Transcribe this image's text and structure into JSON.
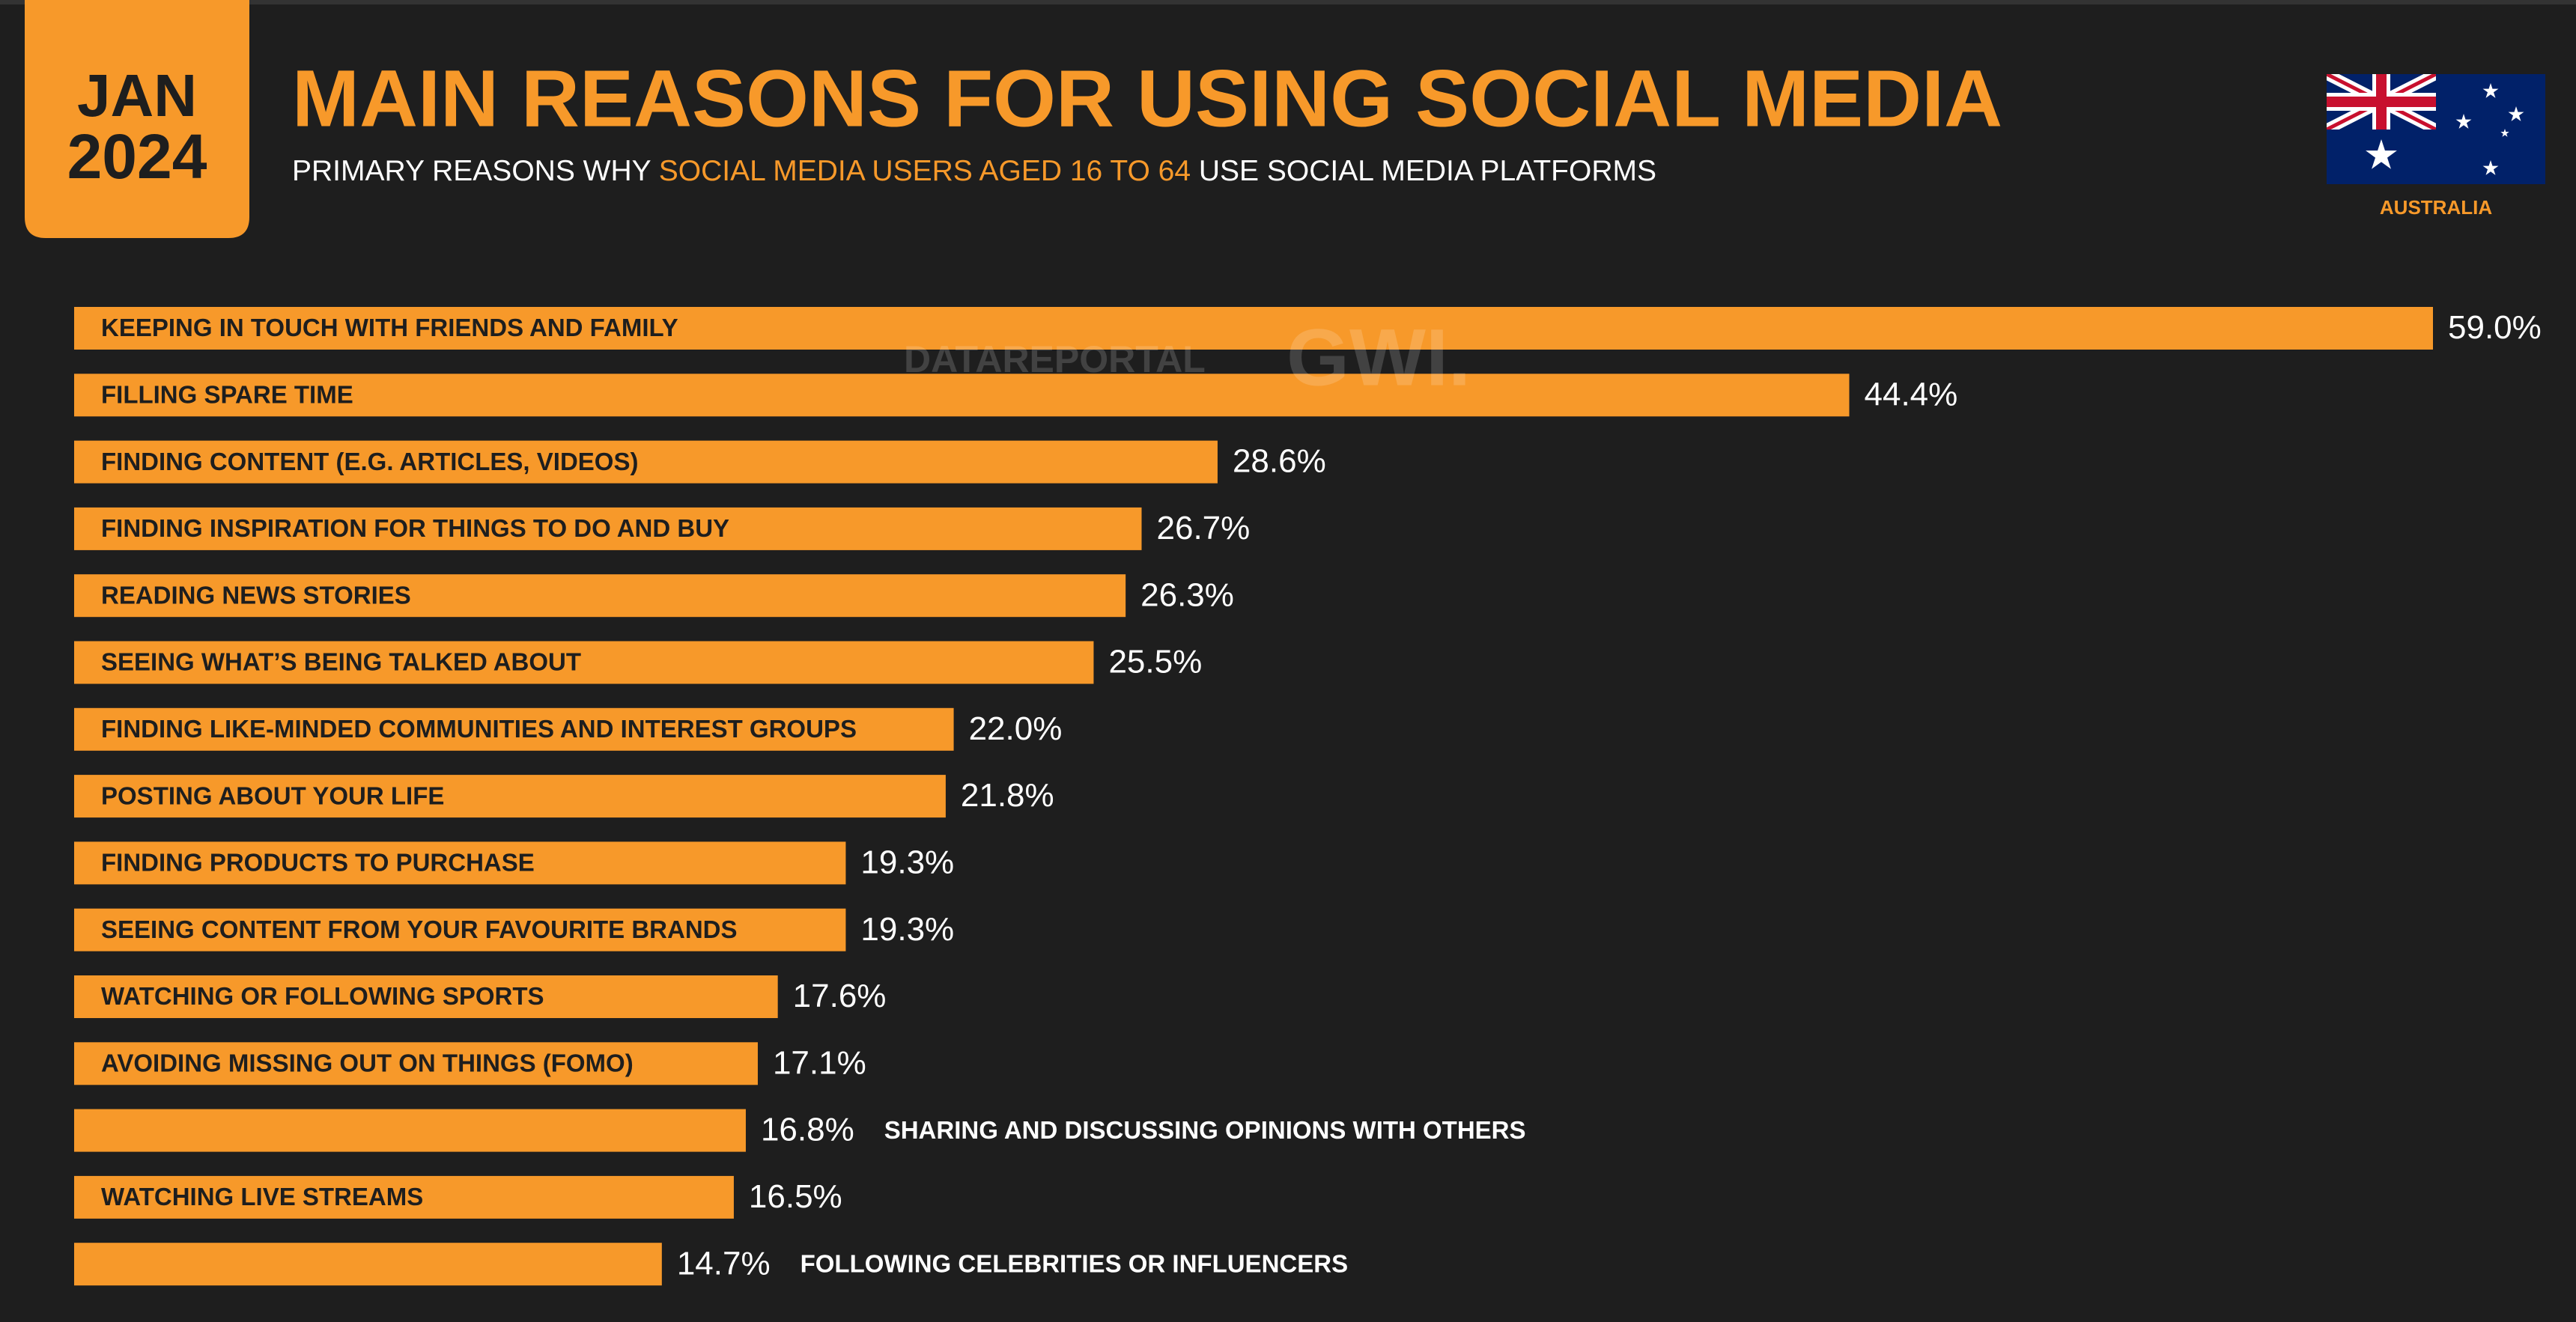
{
  "badge": {
    "month": "JAN",
    "year": "2024"
  },
  "country": "AUSTRALIA",
  "watermark": {
    "left": "DATAREPORTAL",
    "right": "GWI."
  },
  "chart_data": {
    "type": "bar",
    "orientation": "horizontal",
    "title": "MAIN REASONS FOR USING SOCIAL MEDIA",
    "subtitle": [
      "PRIMARY REASONS WHY ",
      "SOCIAL MEDIA USERS AGED 16 TO 64",
      " USE SOCIAL MEDIA PLATFORMS"
    ],
    "color": "#f7992a",
    "categories": [
      "KEEPING IN TOUCH WITH FRIENDS AND FAMILY",
      "FILLING SPARE TIME",
      "FINDING CONTENT (E.G. ARTICLES, VIDEOS)",
      "FINDING INSPIRATION FOR THINGS TO DO AND BUY",
      "READING NEWS STORIES",
      "SEEING WHAT’S BEING TALKED ABOUT",
      "FINDING LIKE-MINDED COMMUNITIES AND INTEREST GROUPS",
      "POSTING ABOUT YOUR LIFE",
      "FINDING PRODUCTS TO PURCHASE",
      "SEEING CONTENT FROM YOUR FAVOURITE BRANDS",
      "WATCHING OR FOLLOWING SPORTS",
      "AVOIDING MISSING OUT ON THINGS (FOMO)",
      "SHARING AND DISCUSSING OPINIONS WITH OTHERS",
      "WATCHING LIVE STREAMS",
      "FOLLOWING CELEBRITIES OR INFLUENCERS"
    ],
    "values": [
      59.0,
      44.4,
      28.6,
      26.7,
      26.3,
      25.5,
      22.0,
      21.8,
      19.3,
      19.3,
      17.6,
      17.1,
      16.8,
      16.5,
      14.7
    ],
    "value_labels": [
      "59.0%",
      "44.4%",
      "28.6%",
      "26.7%",
      "26.3%",
      "25.5%",
      "22.0%",
      "21.8%",
      "19.3%",
      "19.3%",
      "17.6%",
      "17.1%",
      "16.8%",
      "16.5%",
      "14.7%"
    ]
  }
}
